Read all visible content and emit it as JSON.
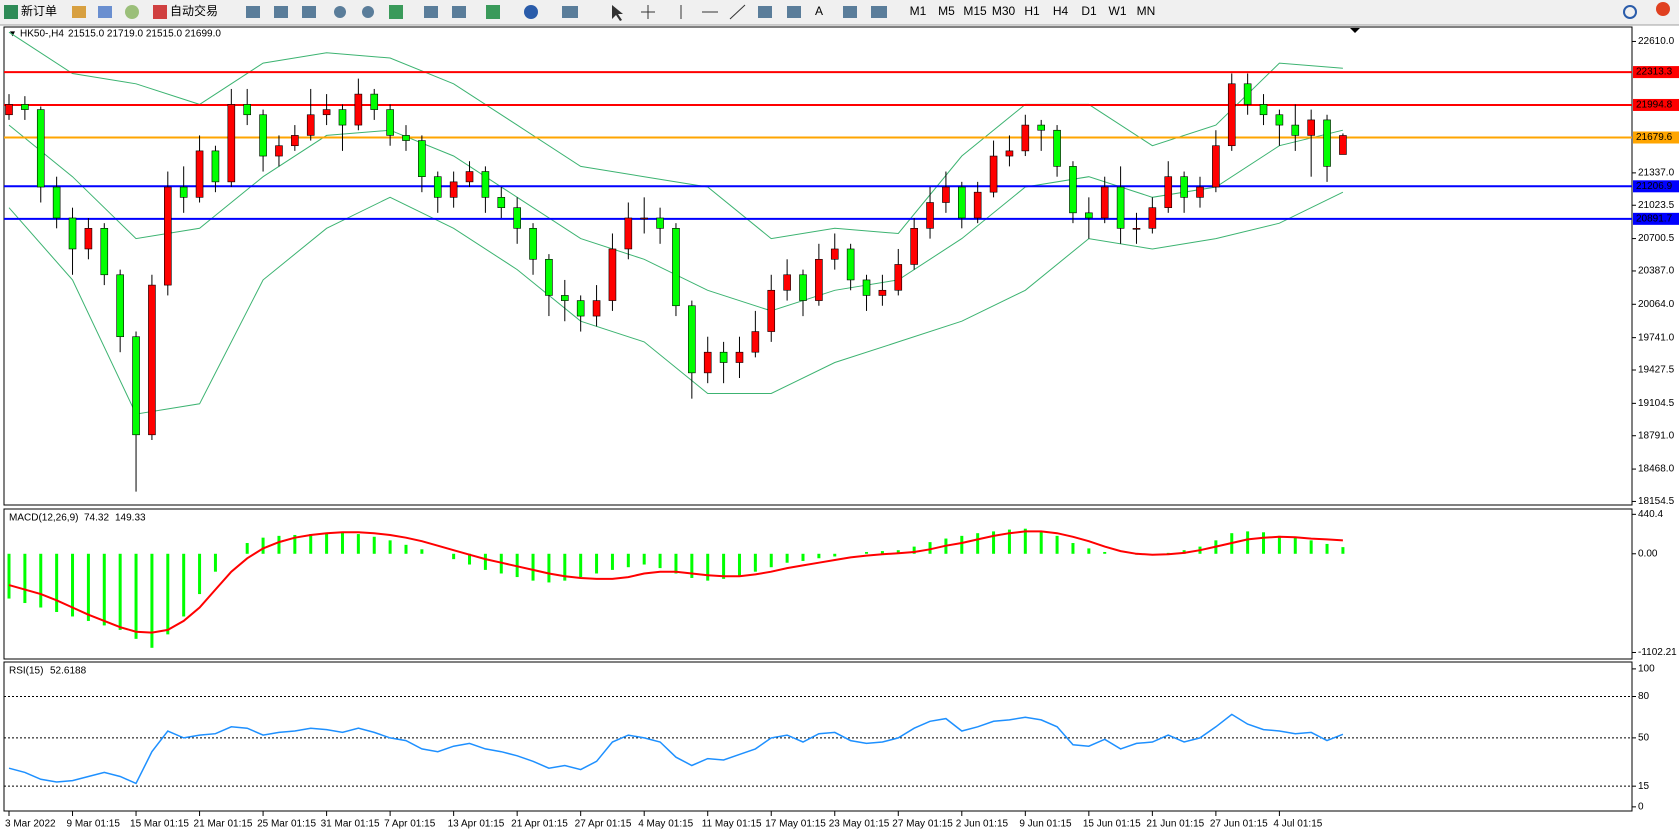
{
  "toolbar": {
    "new_order": "新订单",
    "auto_trading": "自动交易",
    "timeframes": [
      "M1",
      "M5",
      "M15",
      "M30",
      "H1",
      "H4",
      "D1",
      "W1",
      "MN"
    ]
  },
  "chart_data": [
    {
      "type": "candlestick",
      "symbol": "HK50-,H4",
      "quote": "21515.0 21719.0 21515.0 21699.0",
      "categories": [
        "3 Mar 2022",
        null,
        null,
        null,
        "9 Mar 01:15",
        null,
        null,
        null,
        "15 Mar 01:15",
        null,
        null,
        null,
        "21 Mar 01:15",
        null,
        null,
        null,
        "25 Mar 01:15",
        null,
        null,
        null,
        "31 Mar 01:15",
        null,
        null,
        null,
        "7 Apr 01:15",
        null,
        null,
        null,
        "13 Apr 01:15",
        null,
        null,
        null,
        "21 Apr 01:15",
        null,
        null,
        null,
        "27 Apr 01:15",
        null,
        null,
        null,
        "4 May 01:15",
        null,
        null,
        null,
        "11 May 01:15",
        null,
        null,
        null,
        "17 May 01:15",
        null,
        null,
        null,
        "23 May 01:15",
        null,
        null,
        null,
        "27 May 01:15",
        null,
        null,
        null,
        "2 Jun 01:15",
        null,
        null,
        null,
        "9 Jun 01:15",
        null,
        null,
        null,
        "15 Jun 01:15",
        null,
        null,
        null,
        "21 Jun 01:15",
        null,
        null,
        null,
        "27 Jun 01:15",
        null,
        null,
        null,
        "4 Jul 01:15",
        null,
        null,
        null,
        null
      ],
      "open": [
        21900,
        22000,
        21950,
        21200,
        20900,
        20600,
        20800,
        20350,
        19750,
        18800,
        20250,
        21200,
        21100,
        21550,
        21250,
        22000,
        21900,
        21500,
        21600,
        21700,
        21900,
        21950,
        21800,
        22100,
        21950,
        21700,
        21650,
        21300,
        21100,
        21250,
        21350,
        21100,
        21000,
        20800,
        20500,
        20150,
        20100,
        19950,
        20100,
        20600,
        20900,
        20900,
        20800,
        20050,
        19400,
        19600,
        19500,
        19600,
        19800,
        20200,
        20350,
        20100,
        20500,
        20600,
        20300,
        20150,
        20200,
        20450,
        20800,
        21050,
        21200,
        20900,
        21150,
        21500,
        21550,
        21800,
        21750,
        21400,
        20950,
        20900,
        21200,
        20800,
        20800,
        21000,
        21300,
        21100,
        21200,
        21600,
        22200,
        22000,
        21900,
        21800,
        21700,
        21850,
        21515
      ],
      "high": [
        22100,
        22080,
        21980,
        21300,
        21000,
        20900,
        20850,
        20400,
        19800,
        20350,
        21350,
        21400,
        21700,
        21600,
        22150,
        22150,
        21950,
        21700,
        21800,
        22150,
        22100,
        22000,
        22250,
        22150,
        22000,
        21800,
        21700,
        21350,
        21350,
        21450,
        21400,
        21200,
        21100,
        20850,
        20550,
        20300,
        20150,
        20250,
        20750,
        21050,
        21100,
        21000,
        20850,
        20100,
        19750,
        19700,
        19750,
        20000,
        20350,
        20500,
        20400,
        20650,
        20750,
        20650,
        20350,
        20350,
        20600,
        20900,
        21200,
        21350,
        21250,
        21250,
        21650,
        21700,
        21900,
        21850,
        21800,
        21450,
        21100,
        21300,
        21400,
        20950,
        21100,
        21450,
        21350,
        21300,
        21750,
        22300,
        22300,
        22100,
        21950,
        22000,
        21950,
        21900,
        21719
      ],
      "low": [
        21850,
        21850,
        21050,
        20800,
        20350,
        20500,
        20250,
        19600,
        18250,
        18750,
        20150,
        20950,
        21050,
        21150,
        21200,
        21800,
        21350,
        21400,
        21550,
        21650,
        21800,
        21550,
        21750,
        21850,
        21600,
        21550,
        21150,
        20950,
        21000,
        21200,
        20950,
        20900,
        20650,
        20350,
        19950,
        19900,
        19800,
        19850,
        20000,
        20500,
        20750,
        20650,
        19950,
        19150,
        19300,
        19300,
        19350,
        19550,
        19700,
        20100,
        19950,
        20050,
        20400,
        20200,
        20000,
        20050,
        20150,
        20400,
        20700,
        20950,
        20800,
        20850,
        21100,
        21400,
        21500,
        21550,
        21300,
        20850,
        20700,
        20850,
        20650,
        20650,
        20750,
        20950,
        20950,
        21000,
        21150,
        21550,
        21900,
        21800,
        21600,
        21550,
        21300,
        21250,
        21515
      ],
      "close": [
        22000,
        21950,
        21200,
        20900,
        20600,
        20800,
        20350,
        19750,
        18800,
        20250,
        21200,
        21100,
        21550,
        21250,
        22000,
        21900,
        21500,
        21600,
        21700,
        21900,
        21950,
        21800,
        22100,
        21950,
        21700,
        21650,
        21300,
        21100,
        21250,
        21350,
        21100,
        21000,
        20800,
        20500,
        20150,
        20100,
        19950,
        20100,
        20600,
        20900,
        20900,
        20800,
        20050,
        19400,
        19600,
        19500,
        19600,
        19800,
        20200,
        20350,
        20100,
        20500,
        20600,
        20300,
        20150,
        20200,
        20450,
        20800,
        21050,
        21200,
        20900,
        21150,
        21500,
        21550,
        21800,
        21750,
        21400,
        20950,
        20900,
        21200,
        20800,
        20800,
        21000,
        21300,
        21100,
        21200,
        21600,
        22200,
        22000,
        21900,
        21800,
        21700,
        21850,
        21400,
        21699
      ],
      "up_color": "#ff0000",
      "down_color": "#00ff00",
      "wick_color": "#000000",
      "bands": {
        "color": "#3cb371",
        "x": [
          0,
          4,
          8,
          12,
          16,
          20,
          24,
          28,
          32,
          36,
          40,
          44,
          48,
          52,
          56,
          60,
          64,
          68,
          72,
          76,
          80,
          84
        ],
        "upper": [
          22700,
          22300,
          22200,
          22000,
          22400,
          22500,
          22450,
          22200,
          21800,
          21400,
          21300,
          21200,
          20700,
          20800,
          20750,
          21500,
          22000,
          22000,
          21600,
          21800,
          22400,
          22350
        ],
        "middle": [
          21800,
          21300,
          20700,
          20800,
          21300,
          21700,
          21750,
          21500,
          21100,
          20700,
          20500,
          20200,
          20000,
          20200,
          20300,
          20700,
          21200,
          21300,
          21100,
          21200,
          21600,
          21750
        ],
        "lower": [
          21000,
          20300,
          19000,
          19100,
          20300,
          20800,
          21100,
          20800,
          20400,
          19900,
          19700,
          19200,
          19200,
          19500,
          19700,
          19900,
          20200,
          20700,
          20600,
          20700,
          20850,
          21150
        ]
      },
      "levels": [
        {
          "value": 22313.3,
          "color": "#ff0000"
        },
        {
          "value": 21994.8,
          "color": "#ff0000"
        },
        {
          "value": 21679.6,
          "color": "#ffa500"
        },
        {
          "value": 21206.9,
          "color": "#0000ff"
        },
        {
          "value": 20891.7,
          "color": "#0000ff"
        }
      ],
      "ylim": [
        18120,
        22750
      ],
      "yticks": [
        {
          "value": 22610,
          "label": "22610.0"
        },
        {
          "value": 21337,
          "label": "21337.0"
        },
        {
          "value": 21023.5,
          "label": "21023.5"
        },
        {
          "value": 20700.5,
          "label": "20700.5"
        },
        {
          "value": 20387,
          "label": "20387.0"
        },
        {
          "value": 20064,
          "label": "20064.0"
        },
        {
          "value": 19741,
          "label": "19741.0"
        },
        {
          "value": 19427.5,
          "label": "19427.5"
        },
        {
          "value": 19104.5,
          "label": "19104.5"
        },
        {
          "value": 18791,
          "label": "18791.0"
        },
        {
          "value": 18468,
          "label": "18468.0"
        },
        {
          "value": 18154.5,
          "label": "18154.5"
        }
      ]
    },
    {
      "type": "macd",
      "title": "MACD(12,26,9)",
      "hist_color": "#00ff00",
      "signal_color": "#ff0000",
      "histogram": [
        -500,
        -550,
        -600,
        -650,
        -700,
        -750,
        -800,
        -850,
        -950,
        -1050,
        -900,
        -700,
        -450,
        -200,
        0,
        120,
        180,
        200,
        210,
        220,
        230,
        240,
        220,
        190,
        150,
        100,
        50,
        0,
        -60,
        -120,
        -180,
        -220,
        -260,
        -300,
        -320,
        -300,
        -260,
        -220,
        -180,
        -150,
        -120,
        -160,
        -220,
        -270,
        -300,
        -280,
        -250,
        -200,
        -150,
        -100,
        -80,
        -50,
        -30,
        0,
        20,
        30,
        40,
        80,
        130,
        170,
        200,
        230,
        250,
        270,
        280,
        250,
        200,
        120,
        60,
        20,
        0,
        -10,
        0,
        10,
        40,
        80,
        150,
        230,
        250,
        240,
        200,
        180,
        150,
        110,
        74.32
      ],
      "signal": [
        -350,
        -400,
        -450,
        -520,
        -600,
        -680,
        -750,
        -820,
        -870,
        -880,
        -850,
        -750,
        -600,
        -400,
        -200,
        -50,
        60,
        130,
        180,
        210,
        230,
        240,
        240,
        230,
        210,
        180,
        140,
        90,
        40,
        -10,
        -60,
        -100,
        -140,
        -180,
        -220,
        -250,
        -270,
        -280,
        -280,
        -260,
        -220,
        -200,
        -200,
        -220,
        -240,
        -250,
        -250,
        -230,
        -200,
        -160,
        -130,
        -100,
        -70,
        -40,
        -20,
        -5,
        5,
        20,
        50,
        90,
        120,
        160,
        200,
        230,
        250,
        250,
        230,
        190,
        140,
        80,
        30,
        0,
        -10,
        -5,
        10,
        40,
        80,
        120,
        160,
        180,
        190,
        185,
        170,
        160,
        149.33
      ],
      "ylim": [
        -1175,
        500
      ],
      "yticks": [
        440.4,
        {
          "value": 0,
          "label": "0.00"
        },
        -1102.21
      ]
    },
    {
      "type": "rsi",
      "title": "RSI(15)",
      "color": "#1e90ff",
      "values": [
        28,
        25,
        20,
        18,
        19,
        22,
        25,
        22,
        17,
        40,
        55,
        50,
        52,
        53,
        58,
        57,
        52,
        54,
        55,
        57,
        56,
        54,
        57,
        54,
        50,
        48,
        42,
        40,
        44,
        46,
        42,
        40,
        37,
        33,
        28,
        30,
        27,
        33,
        47,
        52,
        50,
        47,
        36,
        30,
        35,
        34,
        38,
        42,
        50,
        52,
        47,
        53,
        54,
        48,
        46,
        47,
        50,
        57,
        62,
        64,
        55,
        58,
        62,
        63,
        65,
        63,
        58,
        45,
        44,
        49,
        42,
        46,
        47,
        52,
        47,
        50,
        58,
        67,
        60,
        56,
        55,
        53,
        54,
        48,
        52.6188
      ],
      "levels": [
        80,
        50,
        15
      ],
      "ylim": [
        -3,
        105
      ],
      "yticks": [
        0,
        15,
        50,
        80,
        100
      ]
    }
  ]
}
